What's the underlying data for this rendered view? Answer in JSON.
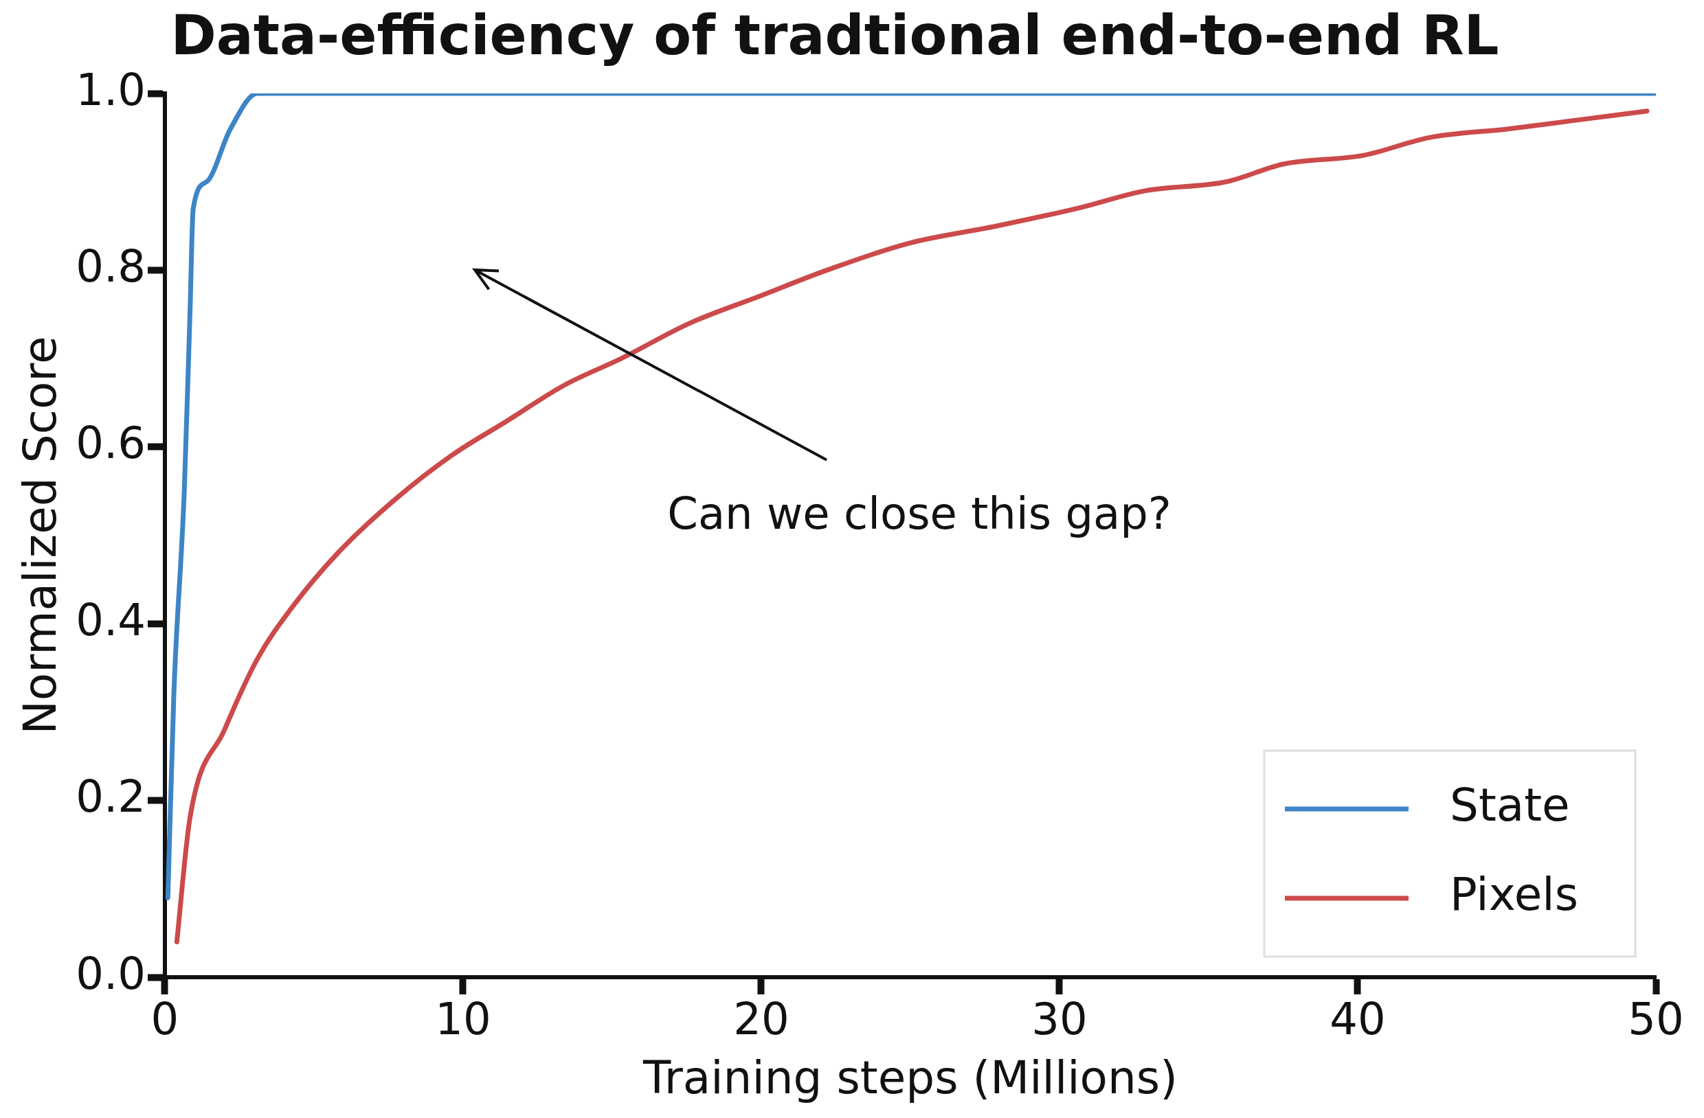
{
  "chart_data": {
    "type": "line",
    "title": "Data-efficiency of tradtional end-to-end RL",
    "xlabel": "Training steps (Millions)",
    "ylabel": "Normalized Score",
    "xlim": [
      0,
      50
    ],
    "xticks": [
      0,
      10,
      20,
      30,
      40,
      50
    ],
    "ylim": [
      0,
      1.0
    ],
    "yticks": [
      {
        "value": 0,
        "label": "0.0"
      },
      0.2,
      0.4,
      0.6,
      0.8,
      {
        "value": 1,
        "label": "1.0"
      }
    ],
    "grid": false,
    "legend": "bottom right",
    "marker": "none",
    "line_style": "solid",
    "annotations": [
      "Can we close this gap?"
    ],
    "series": [
      {
        "name": "State",
        "color": "#3d85c6",
        "x": [
          0.1,
          0.3,
          0.65,
          0.84,
          0.95,
          1.4,
          2.2,
          3.1,
          6,
          10,
          15,
          20,
          25,
          30,
          35,
          40,
          45,
          50
        ],
        "values": [
          0.09,
          0.32,
          0.55,
          0.75,
          0.87,
          0.9,
          0.96,
          1.0,
          1.0,
          1.0,
          1.0,
          1.0,
          1.0,
          1.0,
          1.0,
          1.0,
          1.0,
          1.0
        ]
      },
      {
        "name": "Pixels",
        "color": "#cc4a4a",
        "x": [
          0.4,
          0.84,
          2,
          3.1,
          4.3,
          5.8,
          7.7,
          9.6,
          11.5,
          13.4,
          15.3,
          17.6,
          19.9,
          22.2,
          24.9,
          27.9,
          30.6,
          32.9,
          35.6,
          37.5,
          40.2,
          42.4,
          45.1,
          47.4,
          49.7
        ],
        "values": [
          0.04,
          0.18,
          0.28,
          0.36,
          0.42,
          0.48,
          0.54,
          0.59,
          0.63,
          0.67,
          0.7,
          0.74,
          0.77,
          0.8,
          0.83,
          0.85,
          0.87,
          0.89,
          0.9,
          0.92,
          0.93,
          0.95,
          0.96,
          0.97,
          0.98
        ]
      }
    ]
  }
}
